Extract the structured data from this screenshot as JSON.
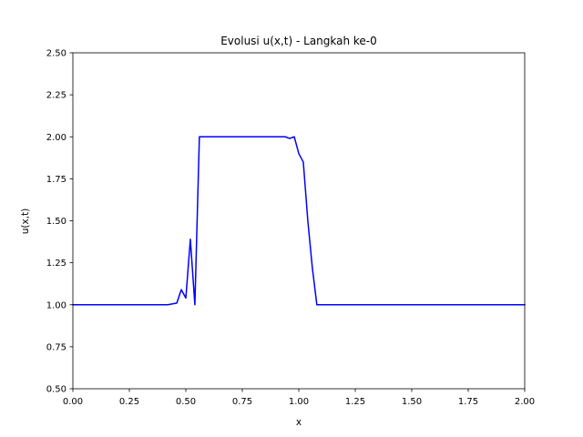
{
  "chart_data": {
    "type": "line",
    "title": "Evolusi u(x,t) - Langkah ke-0",
    "xlabel": "x",
    "ylabel": "u(x,t)",
    "xlim": [
      0,
      2
    ],
    "ylim": [
      0.5,
      2.5
    ],
    "xticks": [
      0,
      0.25,
      0.5,
      0.75,
      1.0,
      1.25,
      1.5,
      1.75,
      2.0
    ],
    "yticks": [
      0.5,
      0.75,
      1.0,
      1.25,
      1.5,
      1.75,
      2.0,
      2.25,
      2.5
    ],
    "xtick_labels": [
      "0.00",
      "0.25",
      "0.50",
      "0.75",
      "1.00",
      "1.25",
      "1.50",
      "1.75",
      "2.00"
    ],
    "ytick_labels": [
      "0.50",
      "0.75",
      "1.00",
      "1.25",
      "1.50",
      "1.75",
      "2.00",
      "2.25",
      "2.50"
    ],
    "grid": false,
    "series": [
      {
        "color": "#0000ff",
        "x": [
          0,
          0.42,
          0.46,
          0.48,
          0.5,
          0.52,
          0.54,
          0.56,
          0.58,
          0.94,
          0.96,
          0.98,
          1.0,
          1.02,
          1.04,
          1.06,
          1.08,
          2.0
        ],
        "y": [
          1.0,
          1.0,
          1.01,
          1.09,
          1.04,
          1.39,
          1.0,
          2.0,
          2.0,
          2.0,
          1.99,
          2.0,
          1.9,
          1.85,
          1.5,
          1.22,
          1.0,
          1.0
        ]
      }
    ]
  }
}
